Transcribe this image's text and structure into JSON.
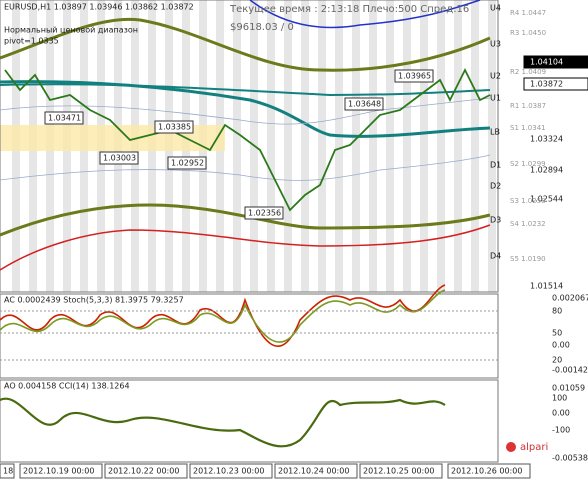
{
  "header": {
    "symbol_line": "EURUSD,H1  1.03897 1.03946 1.03862 1.03872",
    "range_title": "Нормальный ценовой диапазон",
    "pivot": "pivot=1.0335",
    "time_line": "Текущее время : 2:13:18 Плечо:500 Спред:16",
    "balance_line": "$9618.03      / 0"
  },
  "price_axis": [
    "1.04104",
    "1.03872",
    "1.03324",
    "1.02894",
    "1.02544",
    "1.01514"
  ],
  "levels": [
    "R4 1.0447",
    "R3 1.0450",
    "R2 1.0409",
    "R1 1.0387",
    "S1 1.0341",
    "S2 1.0299",
    "S3 1.0258",
    "S4 1.0232",
    "S5 1.0190"
  ],
  "bands": [
    "U4",
    "U3",
    "U2",
    "U1",
    "LB",
    "D1",
    "D2",
    "D3",
    "D4"
  ],
  "annotations": [
    "1.03471",
    "1.03385",
    "1.03003",
    "1.02952",
    "1.02356",
    "1.03648",
    "1.03965"
  ],
  "panel1": {
    "header": "AC 0.0002439  Stoch(5,3,3) 81.3975 79.3257",
    "axis": [
      "0.002067",
      "80",
      "50",
      "0.00",
      "20",
      "-0.00142"
    ]
  },
  "panel2": {
    "header": "AO 0.004158  CCI(14) 138.1264",
    "axis": [
      "0.01059",
      "100",
      "0.00",
      "-100",
      "-0.00538"
    ]
  },
  "logo": "alpari",
  "dates": [
    "18",
    "2012.10.19 00:00",
    "2012.10.22 00:00",
    "2012.10.23 00:00",
    "2012.10.24 00:00",
    "2012.10.25 00:00",
    "2012.10.26 00:00"
  ]
}
